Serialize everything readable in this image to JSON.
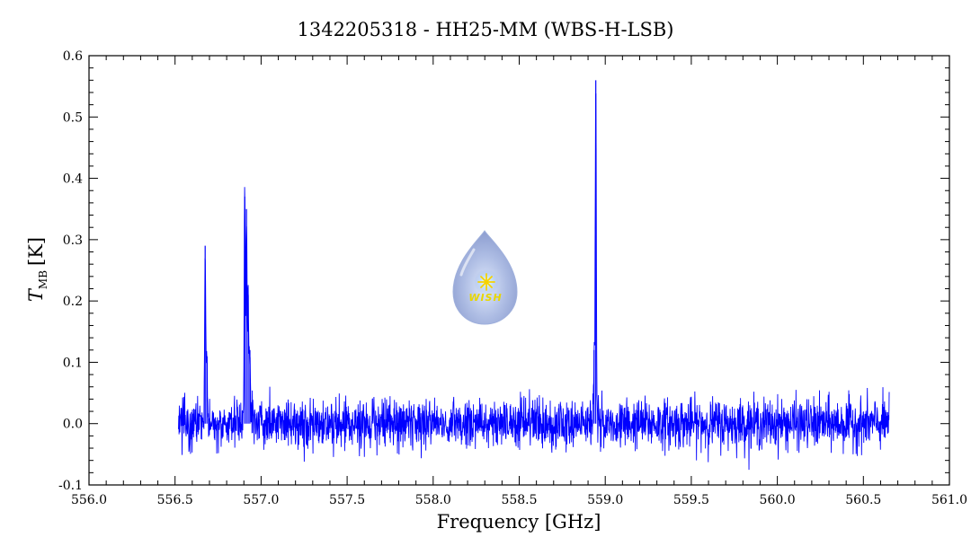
{
  "chart_data": {
    "type": "line",
    "title": "1342205318 - HH25-MM (WBS-H-LSB)",
    "xlabel": "Frequency [GHz]",
    "ylabel": {
      "symbol": "T",
      "subscript": "MB",
      "unit": "[K]"
    },
    "xlim": [
      556.0,
      561.0
    ],
    "ylim": [
      -0.1,
      0.6
    ],
    "xticks": [
      "556.0",
      "556.5",
      "557.0",
      "557.5",
      "558.0",
      "558.5",
      "559.0",
      "559.5",
      "560.0",
      "560.5",
      "561.0"
    ],
    "yticks": [
      "-0.1",
      "0.0",
      "0.1",
      "0.2",
      "0.3",
      "0.4",
      "0.5",
      "0.6"
    ],
    "grid": false,
    "series": [
      {
        "color": "#0000ff",
        "x_range": [
          556.52,
          560.65
        ],
        "noise_rms_K": 0.02,
        "peaks": [
          {
            "x": 556.675,
            "y": 0.29
          },
          {
            "x": 556.685,
            "y": 0.1
          },
          {
            "x": 556.905,
            "y": 0.37
          },
          {
            "x": 556.915,
            "y": 0.35
          },
          {
            "x": 556.925,
            "y": 0.21
          },
          {
            "x": 556.935,
            "y": 0.12
          },
          {
            "x": 558.935,
            "y": 0.12
          },
          {
            "x": 558.945,
            "y": 0.56
          }
        ]
      }
    ]
  },
  "logo": {
    "text": "WISH"
  }
}
